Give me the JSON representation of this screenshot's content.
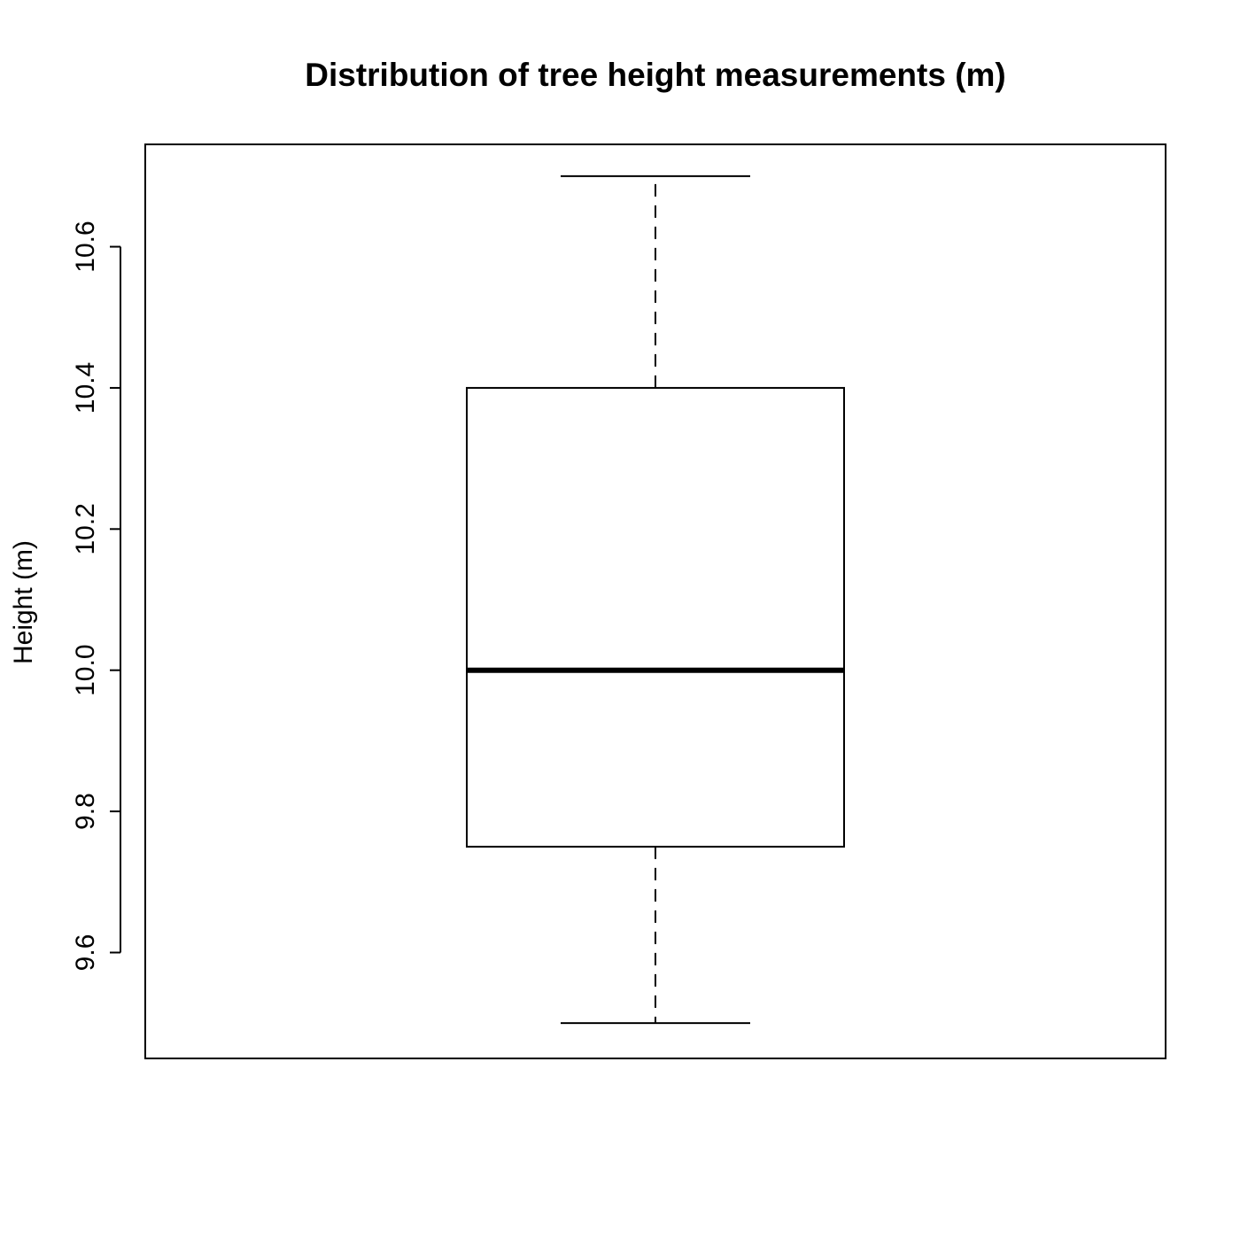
{
  "chart_data": {
    "type": "boxplot",
    "title": "Distribution of tree height measurements (m)",
    "xlabel": "",
    "ylabel": "Height (m)",
    "ylim": [
      9.45,
      10.745
    ],
    "yticks": [
      9.6,
      9.8,
      10.0,
      10.2,
      10.4,
      10.6
    ],
    "ytick_labels": [
      "9.6",
      "9.8",
      "10.0",
      "10.2",
      "10.4",
      "10.6"
    ],
    "box": {
      "min": 9.5,
      "q1": 9.75,
      "median": 10.0,
      "q3": 10.4,
      "max": 10.7
    },
    "grid": false,
    "colors": {
      "stroke": "#000000",
      "fill": "#ffffff"
    }
  }
}
